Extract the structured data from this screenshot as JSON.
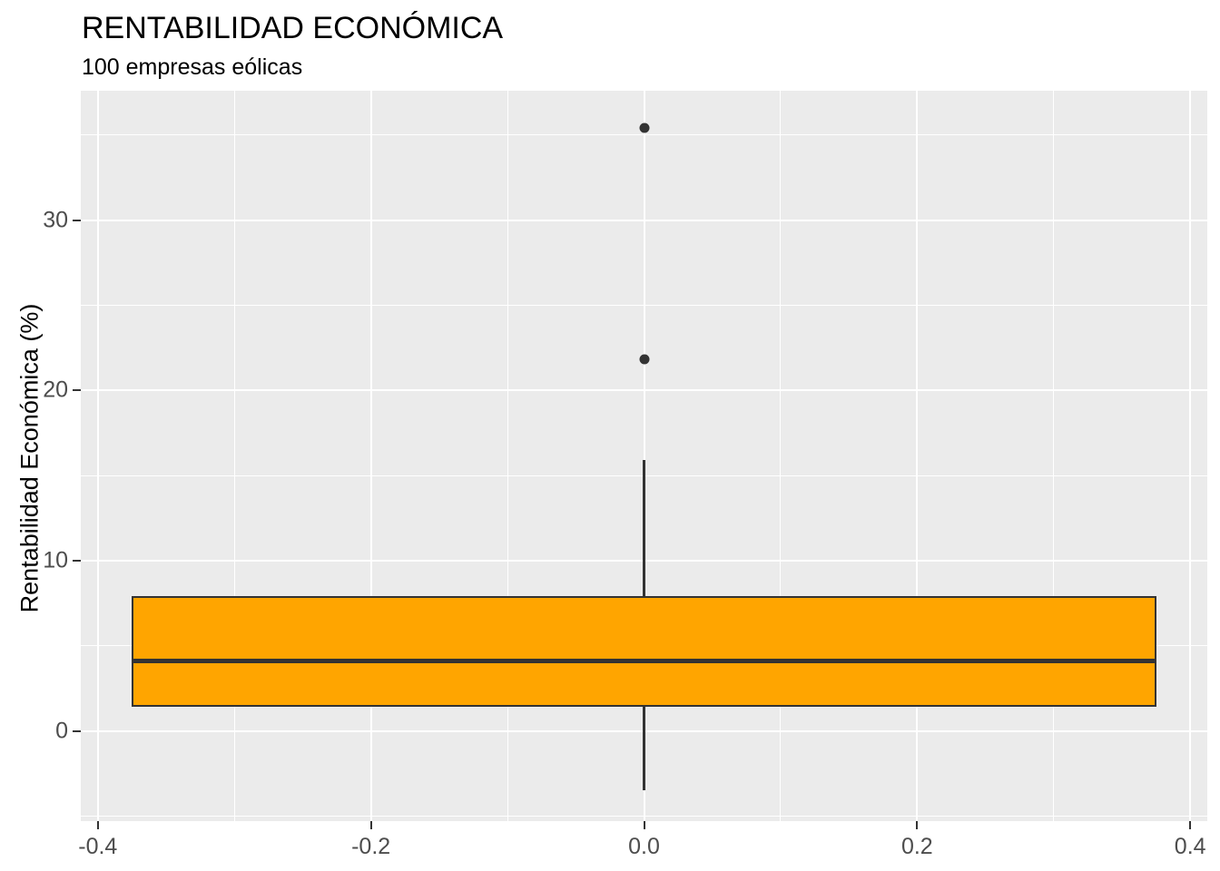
{
  "title": "RENTABILIDAD ECONÓMICA",
  "subtitle": "100 empresas eólicas",
  "chart_data": {
    "type": "boxplot",
    "title": "RENTABILIDAD ECONÓMICA",
    "subtitle": "100 empresas eólicas",
    "xlabel": "",
    "ylabel": "Rentabilidad Económica (%)",
    "orientation": "vertical",
    "grid": true,
    "legend": false,
    "xlim": [
      -0.4125,
      0.4125
    ],
    "ylim": [
      -5.3,
      37.6
    ],
    "x_ticks": [
      -0.4,
      -0.2,
      0.0,
      0.2,
      0.4
    ],
    "x_tick_labels": [
      "-0.4",
      "-0.2",
      "0.0",
      "0.2",
      "0.4"
    ],
    "x_minor_ticks": [
      -0.3,
      -0.1,
      0.1,
      0.3
    ],
    "y_ticks": [
      0,
      10,
      20,
      30
    ],
    "y_tick_labels": [
      "0",
      "10",
      "20",
      "30"
    ],
    "y_minor_ticks": [
      -5,
      5,
      15,
      25,
      35
    ],
    "series": [
      {
        "name": "100 empresas eólicas",
        "x_center": 0,
        "box_half_width": 0.375,
        "lower_whisker": -3.5,
        "q1": 1.4,
        "median": 4.1,
        "q3": 7.9,
        "upper_whisker": 15.9,
        "outliers": [
          21.8,
          35.4
        ]
      }
    ],
    "colors": {
      "box_fill": "#FFA500",
      "box_border": "#333333",
      "panel_background": "#EBEBEB",
      "gridline": "#FFFFFF",
      "tick_label": "#4D4D4D",
      "title_text": "#000000"
    }
  }
}
